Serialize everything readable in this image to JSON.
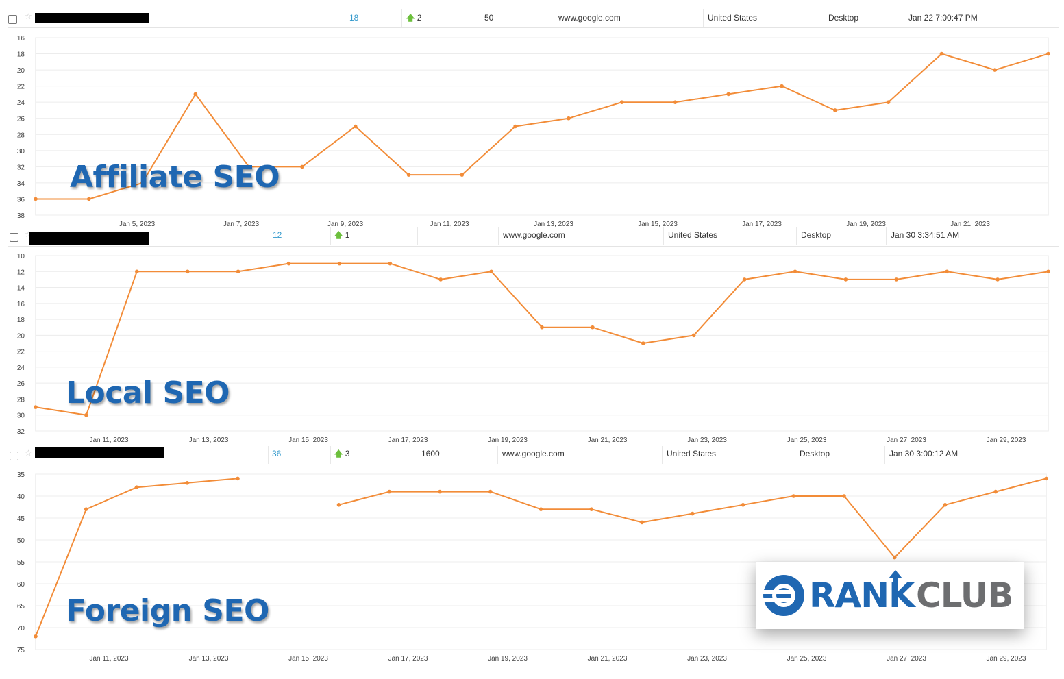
{
  "colors": {
    "line": "#f28c38",
    "rank_link": "#3399cc",
    "up_arrow": "#6cbf3c",
    "overlay_text": "#1f67b2",
    "logo_blue": "#1f67b2",
    "logo_gray": "#6d6e70"
  },
  "rows": [
    {
      "rank": "18",
      "change": "2",
      "volume": "50",
      "engine": "www.google.com",
      "country": "United States",
      "device": "Desktop",
      "updated": "Jan 22 7:00:47 PM"
    },
    {
      "rank": "12",
      "change": "1",
      "volume": "",
      "engine": "www.google.com",
      "country": "United States",
      "device": "Desktop",
      "updated": "Jan 30 3:34:51 AM"
    },
    {
      "rank": "36",
      "change": "3",
      "volume": "1600",
      "engine": "www.google.com",
      "country": "United States",
      "device": "Desktop",
      "updated": "Jan 30 3:00:12 AM"
    }
  ],
  "overlays": [
    "Affiliate SEO",
    "Local SEO",
    "Foreign SEO"
  ],
  "logo": {
    "rank": "RANK",
    "club": "CLUB"
  },
  "chart_data": [
    {
      "type": "line",
      "series": [
        {
          "values": [
            36,
            36,
            34,
            23,
            32,
            32,
            27,
            33,
            33,
            27,
            26,
            24,
            24,
            23,
            22,
            25,
            24,
            18,
            20,
            18
          ]
        }
      ],
      "x": [
        "Jan 3",
        "Jan 4",
        "Jan 5",
        "Jan 6",
        "Jan 7",
        "Jan 8",
        "Jan 9",
        "Jan 10",
        "Jan 11",
        "Jan 12",
        "Jan 13",
        "Jan 14",
        "Jan 15",
        "Jan 16",
        "Jan 17",
        "Jan 18",
        "Jan 19",
        "Jan 20",
        "Jan 21",
        "Jan 22"
      ],
      "yticks": [
        16,
        18,
        20,
        22,
        24,
        26,
        28,
        30,
        32,
        34,
        36,
        38
      ],
      "xticks": [
        "Jan 5, 2023",
        "Jan 7, 2023",
        "Jan 9, 2023",
        "Jan 11, 2023",
        "Jan 13, 2023",
        "Jan 15, 2023",
        "Jan 17, 2023",
        "Jan 19, 2023",
        "Jan 21, 2023"
      ],
      "ylim": [
        16,
        38
      ],
      "y_inverted": true,
      "grid": true,
      "legend": "none"
    },
    {
      "type": "line",
      "series": [
        {
          "values": [
            29,
            30,
            12,
            12,
            12,
            11,
            11,
            11,
            13,
            12,
            19,
            19,
            21,
            20,
            13,
            12,
            13,
            13,
            12,
            13,
            12
          ]
        }
      ],
      "x": [
        "Jan 10",
        "Jan 11",
        "Jan 12",
        "Jan 13",
        "Jan 14",
        "Jan 15",
        "Jan 16",
        "Jan 17",
        "Jan 18",
        "Jan 19",
        "Jan 20",
        "Jan 21",
        "Jan 22",
        "Jan 23",
        "Jan 24",
        "Jan 25",
        "Jan 26",
        "Jan 27",
        "Jan 28",
        "Jan 29",
        "Jan 30"
      ],
      "yticks": [
        10,
        12,
        14,
        16,
        18,
        20,
        22,
        24,
        26,
        28,
        30,
        32
      ],
      "xticks": [
        "Jan 11, 2023",
        "Jan 13, 2023",
        "Jan 15, 2023",
        "Jan 17, 2023",
        "Jan 19, 2023",
        "Jan 21, 2023",
        "Jan 23, 2023",
        "Jan 25, 2023",
        "Jan 27, 2023",
        "Jan 29, 2023"
      ],
      "ylim": [
        10,
        32
      ],
      "y_inverted": true,
      "grid": true,
      "legend": "none"
    },
    {
      "type": "line",
      "series": [
        {
          "values": [
            72,
            43,
            38,
            37,
            36,
            null,
            42,
            39,
            39,
            39,
            43,
            43,
            46,
            44,
            42,
            40,
            40,
            54,
            42,
            39,
            36
          ]
        }
      ],
      "x": [
        "Jan 10",
        "Jan 11",
        "Jan 12",
        "Jan 13",
        "Jan 14",
        "Jan 15",
        "Jan 16",
        "Jan 17",
        "Jan 18",
        "Jan 19",
        "Jan 20",
        "Jan 21",
        "Jan 22",
        "Jan 23",
        "Jan 24",
        "Jan 25",
        "Jan 26",
        "Jan 27",
        "Jan 28",
        "Jan 29",
        "Jan 30"
      ],
      "yticks": [
        35,
        40,
        45,
        50,
        55,
        60,
        65,
        70,
        75
      ],
      "xticks": [
        "Jan 11, 2023",
        "Jan 13, 2023",
        "Jan 15, 2023",
        "Jan 17, 2023",
        "Jan 19, 2023",
        "Jan 21, 2023",
        "Jan 23, 2023",
        "Jan 25, 2023",
        "Jan 27, 2023",
        "Jan 29, 2023"
      ],
      "ylim": [
        35,
        75
      ],
      "y_inverted": true,
      "grid": true,
      "legend": "none"
    }
  ]
}
